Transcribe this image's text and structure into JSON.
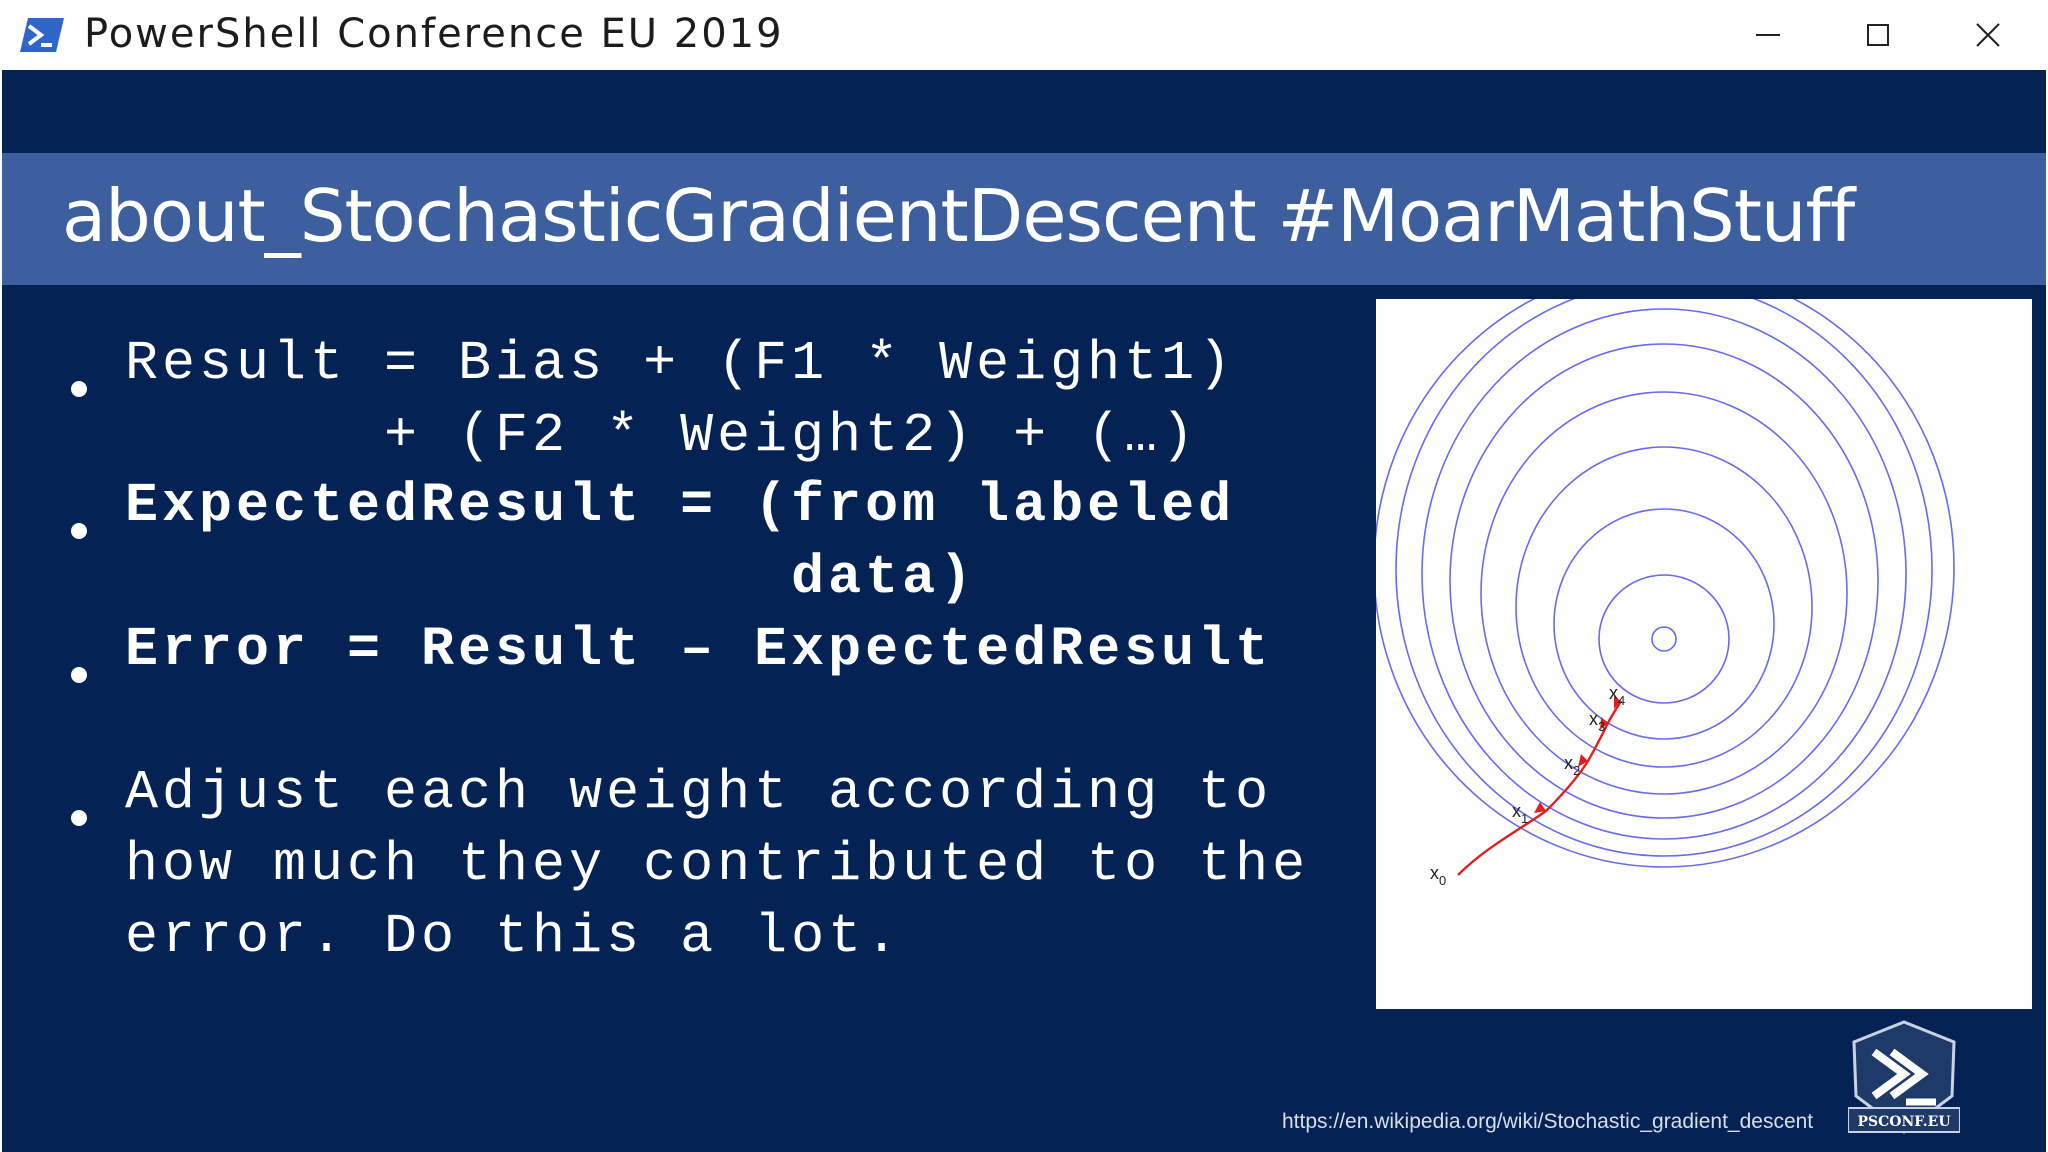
{
  "window": {
    "title": "PowerShell Conference EU 2019",
    "icon": "powershell-icon",
    "controls": [
      "minimize-icon",
      "maximize-icon",
      "close-icon"
    ]
  },
  "slide": {
    "title": "about_StochasticGradientDescent #MoarMathStuff",
    "bullets": [
      {
        "lines": [
          "Result = Bias + (F1 * Weight1)",
          "       + (F2 * Weight2) + (…)"
        ],
        "bold": false
      },
      {
        "lines": [
          "ExpectedResult = (from labeled",
          "                  data)"
        ],
        "bold": true
      },
      {
        "lines": [
          "Error = Result – ExpectedResult"
        ],
        "bold": true
      },
      {
        "lines": [
          "Adjust each weight according to",
          "how much they contributed to the",
          "error. Do this a lot."
        ],
        "bold": false
      }
    ],
    "figure_labels": {
      "x0": "x",
      "x0_sub": "0",
      "x1": "x",
      "x1_sub": "1",
      "x2": "x",
      "x2_sub": "2",
      "x3": "x",
      "x3_sub": "3",
      "x4": "x",
      "x4_sub": "4"
    },
    "source_url": "https://en.wikipedia.org/wiki/Stochastic_gradient_descent",
    "logo_text": "PSCONF.EU"
  },
  "colors": {
    "slide_bg": "#042354",
    "title_band": "#3e5f9d",
    "contour": "#6a6af0",
    "path": "#e02020"
  }
}
